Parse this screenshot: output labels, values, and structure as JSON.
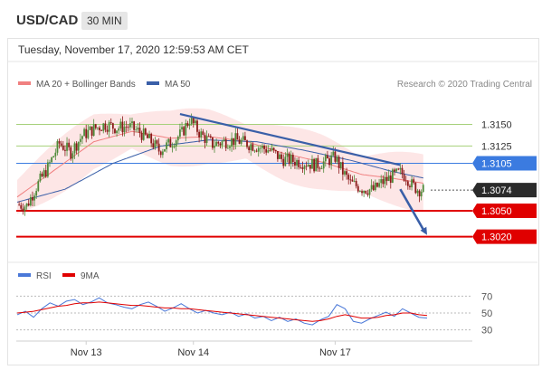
{
  "header": {
    "pair": "USD/CAD",
    "timeframe": "30 MIN"
  },
  "datetime": "Tuesday, November 17, 2020 12:59:53 AM CET",
  "legend": {
    "ma20": "MA 20 + Bollinger Bands",
    "ma50": "MA 50"
  },
  "attribution": "Research © 2020 Trading Central",
  "colors": {
    "ma20": "#f08080",
    "ma50": "#3a5fa8",
    "band": "#fde3e3",
    "resistance": "#a6d07a",
    "pivot": "#3b7be0",
    "support": "#e00000",
    "up_candle": "#4f8a3a",
    "down_candle": "#8b1a1a",
    "trend": "#3a5fa8",
    "rsi": "#4a78d8",
    "rsi_ma": "#e00000"
  },
  "chart_data": [
    {
      "type": "candlestick",
      "title": "USD/CAD 30 MIN",
      "ylim": [
        1.3005,
        1.3182
      ],
      "x_labels": [
        "Nov 13",
        "Nov 14",
        "Nov 17"
      ],
      "levels": [
        {
          "label": "1.3150",
          "value": 1.315,
          "kind": "resistance"
        },
        {
          "label": "1.3125",
          "value": 1.3125,
          "kind": "resistance"
        },
        {
          "label": "1.3105",
          "value": 1.3105,
          "kind": "pivot"
        },
        {
          "label": "1.3074",
          "value": 1.3074,
          "kind": "last"
        },
        {
          "label": "1.3050",
          "value": 1.305,
          "kind": "support"
        },
        {
          "label": "1.3020",
          "value": 1.302,
          "kind": "support"
        }
      ],
      "close_path": [
        [
          0,
          1.3057
        ],
        [
          5,
          1.3056
        ],
        [
          10,
          1.3078
        ],
        [
          16,
          1.31
        ],
        [
          22,
          1.3128
        ],
        [
          28,
          1.3118
        ],
        [
          34,
          1.3137
        ],
        [
          40,
          1.3145
        ],
        [
          46,
          1.315
        ],
        [
          52,
          1.3146
        ],
        [
          58,
          1.3148
        ],
        [
          64,
          1.3141
        ],
        [
          70,
          1.313
        ],
        [
          74,
          1.312
        ],
        [
          80,
          1.3128
        ],
        [
          86,
          1.314
        ],
        [
          90,
          1.3156
        ],
        [
          96,
          1.3138
        ],
        [
          102,
          1.3127
        ],
        [
          108,
          1.313
        ],
        [
          114,
          1.3132
        ],
        [
          120,
          1.3128
        ],
        [
          126,
          1.3124
        ],
        [
          132,
          1.312
        ],
        [
          138,
          1.311
        ],
        [
          144,
          1.3108
        ],
        [
          150,
          1.3106
        ],
        [
          156,
          1.3103
        ],
        [
          162,
          1.3108
        ],
        [
          166,
          1.3112
        ],
        [
          170,
          1.3095
        ],
        [
          174,
          1.3082
        ],
        [
          180,
          1.3076
        ],
        [
          186,
          1.3074
        ],
        [
          190,
          1.3082
        ],
        [
          195,
          1.3089
        ],
        [
          200,
          1.3094
        ],
        [
          203,
          1.309
        ],
        [
          206,
          1.308
        ],
        [
          209,
          1.3075
        ],
        [
          212,
          1.3074
        ]
      ],
      "ma20_path": [
        [
          0,
          1.3066
        ],
        [
          20,
          1.3098
        ],
        [
          40,
          1.313
        ],
        [
          60,
          1.3142
        ],
        [
          80,
          1.3134
        ],
        [
          100,
          1.3136
        ],
        [
          120,
          1.313
        ],
        [
          140,
          1.3116
        ],
        [
          160,
          1.3106
        ],
        [
          180,
          1.3092
        ],
        [
          195,
          1.3088
        ],
        [
          212,
          1.3082
        ]
      ],
      "ma50_path": [
        [
          0,
          1.306
        ],
        [
          25,
          1.3075
        ],
        [
          50,
          1.3105
        ],
        [
          75,
          1.3125
        ],
        [
          100,
          1.3132
        ],
        [
          125,
          1.313
        ],
        [
          150,
          1.312
        ],
        [
          175,
          1.3108
        ],
        [
          195,
          1.3096
        ],
        [
          212,
          1.3088
        ]
      ],
      "band_width": 0.0028,
      "trendline": {
        "from": [
          85,
          1.3162
        ],
        "to": [
          200,
          1.3103
        ]
      },
      "projection": {
        "from": [
          200,
          1.3075
        ],
        "to": [
          214,
          1.3022
        ]
      },
      "x_label_positions": [
        36,
        92,
        166
      ]
    },
    {
      "type": "line",
      "title": "RSI",
      "series": [
        {
          "name": "RSI",
          "values": [
            48,
            52,
            45,
            55,
            62,
            58,
            64,
            66,
            60,
            63,
            68,
            62,
            60,
            57,
            55,
            60,
            63,
            58,
            52,
            56,
            61,
            55,
            50,
            53,
            50,
            48,
            51,
            46,
            49,
            44,
            46,
            41,
            45,
            40,
            43,
            38,
            36,
            42,
            46,
            60,
            55,
            40,
            38,
            43,
            47,
            51,
            46,
            55,
            50,
            45,
            44
          ]
        },
        {
          "name": "9MA",
          "values": [
            50,
            51,
            52,
            54,
            56,
            58,
            59,
            61,
            62,
            62,
            63,
            62,
            61,
            60,
            59,
            59,
            58,
            57,
            56,
            56,
            55,
            55,
            54,
            53,
            52,
            51,
            50,
            49,
            48,
            47,
            46,
            45,
            44,
            43,
            42,
            41,
            40,
            41,
            43,
            46,
            48,
            46,
            44,
            44,
            45,
            47,
            48,
            50,
            50,
            48,
            47
          ]
        }
      ],
      "ylim": [
        20,
        80
      ],
      "yticks": [
        70,
        50,
        30
      ]
    }
  ]
}
